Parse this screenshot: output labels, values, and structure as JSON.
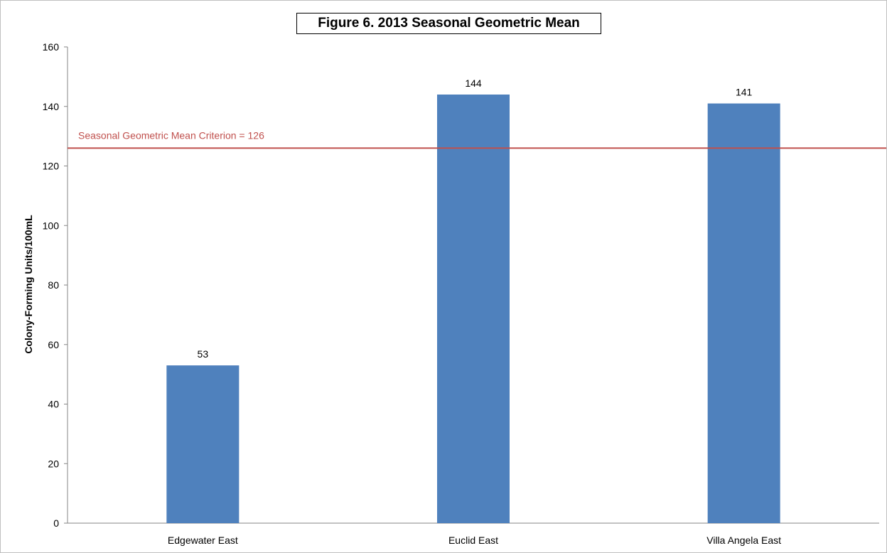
{
  "chart_data": {
    "type": "bar",
    "title": "Figure 6. 2013 Seasonal Geometric Mean",
    "xlabel": "",
    "ylabel": "Colony-Forming Units/100mL",
    "categories": [
      "Edgewater East",
      "Euclid East",
      "Villa Angela East"
    ],
    "values": [
      53,
      144,
      141
    ],
    "data_labels": [
      "53",
      "144",
      "141"
    ],
    "ylim": [
      0,
      160
    ],
    "yticks": [
      0,
      20,
      40,
      60,
      80,
      100,
      120,
      140,
      160
    ],
    "grid": false,
    "legend": "none",
    "bar_color": "#4f81bd",
    "reference_line": {
      "value": 126,
      "label": "Seasonal Geometric Mean Criterion = 126",
      "color": "#c0504d"
    }
  }
}
